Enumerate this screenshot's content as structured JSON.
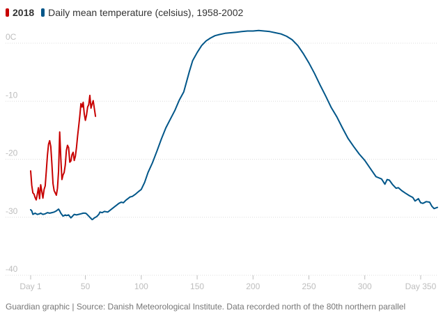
{
  "legend": [
    {
      "label": "2018",
      "color": "#c70000",
      "bold": true
    },
    {
      "label": "Daily mean temperature (celsius), 1958-2002",
      "color": "#005689",
      "bold": false
    }
  ],
  "source": "Guardian graphic | Source: Danish Meteorological Institute. Data recorded north of the 80th northern parallel",
  "colors": {
    "grid": "#dcdcdc",
    "tick": "#bdbdbd",
    "series_2018": "#c70000",
    "series_mean": "#005689"
  },
  "chart_data": {
    "type": "line",
    "title": "",
    "xlabel": "",
    "ylabel": "",
    "xlim": [
      1,
      365
    ],
    "ylim": [
      -40,
      0
    ],
    "yticks": [
      {
        "value": 0,
        "label": "0C"
      },
      {
        "value": -10,
        "label": "-10"
      },
      {
        "value": -20,
        "label": "-20"
      },
      {
        "value": -30,
        "label": "-30"
      },
      {
        "value": -40,
        "label": "-40"
      }
    ],
    "xticks": [
      {
        "value": 1,
        "label": "Day 1"
      },
      {
        "value": 50,
        "label": "50"
      },
      {
        "value": 100,
        "label": "100"
      },
      {
        "value": 150,
        "label": "150"
      },
      {
        "value": 200,
        "label": "200"
      },
      {
        "value": 250,
        "label": "250"
      },
      {
        "value": 300,
        "label": "300"
      },
      {
        "value": 350,
        "label": "Day 350"
      }
    ],
    "series": [
      {
        "name": "Daily mean temperature (celsius), 1958-2002",
        "color": "#005689",
        "x": [
          1,
          2,
          3,
          5,
          7,
          9,
          10,
          12,
          14,
          16,
          18,
          20,
          22,
          24,
          26,
          27,
          28,
          30,
          31,
          32,
          33,
          35,
          37,
          38,
          40,
          42,
          44,
          46,
          48,
          50,
          51,
          53,
          55,
          56,
          57,
          58,
          60,
          62,
          63,
          65,
          67,
          70,
          72,
          74,
          76,
          78,
          80,
          82,
          84,
          86,
          88,
          90,
          92,
          95,
          98,
          100,
          103,
          106,
          110,
          114,
          118,
          122,
          126,
          130,
          134,
          138,
          140,
          143,
          146,
          150,
          154,
          158,
          162,
          166,
          170,
          175,
          180,
          185,
          190,
          195,
          200,
          205,
          210,
          215,
          220,
          225,
          230,
          235,
          240,
          245,
          250,
          255,
          260,
          265,
          270,
          275,
          280,
          285,
          290,
          295,
          300,
          305,
          310,
          315,
          318,
          320,
          322,
          325,
          328,
          330,
          333,
          336,
          340,
          343,
          345,
          348,
          350,
          352,
          355,
          358,
          360,
          362,
          365
        ],
        "values": [
          -28.7,
          -28.9,
          -29.5,
          -29.3,
          -29.5,
          -29.4,
          -29.3,
          -29.5,
          -29.4,
          -29.2,
          -29.3,
          -29.2,
          -29.1,
          -28.9,
          -28.6,
          -28.9,
          -29.3,
          -29.8,
          -29.7,
          -29.6,
          -29.7,
          -29.6,
          -30.1,
          -29.9,
          -29.5,
          -29.6,
          -29.5,
          -29.4,
          -29.3,
          -29.3,
          -29.4,
          -29.8,
          -30.2,
          -30.4,
          -30.3,
          -30.1,
          -29.9,
          -29.5,
          -29.1,
          -29.2,
          -29.0,
          -29.1,
          -28.8,
          -28.5,
          -28.2,
          -27.9,
          -27.6,
          -27.4,
          -27.5,
          -27.1,
          -26.8,
          -26.5,
          -26.4,
          -26.0,
          -25.5,
          -25.2,
          -24.0,
          -22.3,
          -20.6,
          -18.6,
          -16.5,
          -14.6,
          -13.1,
          -11.6,
          -9.8,
          -8.4,
          -7.0,
          -4.9,
          -3.0,
          -1.6,
          -0.4,
          0.4,
          0.9,
          1.3,
          1.5,
          1.7,
          1.8,
          1.9,
          2.0,
          2.1,
          2.1,
          2.2,
          2.1,
          2.0,
          1.8,
          1.6,
          1.2,
          0.6,
          -0.4,
          -1.8,
          -3.4,
          -5.2,
          -7.2,
          -9.1,
          -11.1,
          -12.7,
          -14.6,
          -16.4,
          -17.8,
          -19.1,
          -20.2,
          -21.6,
          -23.0,
          -23.4,
          -24.3,
          -23.5,
          -23.6,
          -24.4,
          -25.0,
          -24.9,
          -25.4,
          -25.8,
          -26.3,
          -26.6,
          -27.2,
          -26.8,
          -27.5,
          -27.6,
          -27.3,
          -27.4,
          -28.1,
          -28.5,
          -28.3
        ]
      },
      {
        "name": "2018",
        "color": "#c70000",
        "x": [
          1,
          2,
          3,
          4,
          5,
          6,
          7,
          8,
          9,
          10,
          11,
          12,
          13,
          14,
          15,
          16,
          17,
          18,
          19,
          20,
          21,
          22,
          23,
          24,
          25,
          26,
          27,
          28,
          29,
          30,
          31,
          32,
          33,
          34,
          35,
          36,
          37,
          38,
          39,
          40,
          41,
          42,
          43,
          44,
          45,
          46,
          47,
          48,
          49,
          50,
          51,
          52,
          53,
          54,
          55,
          56,
          57,
          58,
          59
        ],
        "values": [
          -22.0,
          -24.5,
          -25.8,
          -26.0,
          -26.6,
          -27.0,
          -26.0,
          -24.9,
          -26.8,
          -24.4,
          -25.5,
          -26.7,
          -25.2,
          -24.6,
          -22.0,
          -19.3,
          -17.4,
          -16.8,
          -17.8,
          -20.8,
          -24.2,
          -25.4,
          -25.8,
          -26.2,
          -25.0,
          -22.0,
          -15.3,
          -19.8,
          -23.5,
          -22.7,
          -22.3,
          -21.0,
          -18.5,
          -17.6,
          -18.0,
          -20.5,
          -20.3,
          -19.2,
          -18.8,
          -20.2,
          -19.5,
          -18.0,
          -16.0,
          -14.3,
          -12.5,
          -10.4,
          -11.0,
          -10.2,
          -12.2,
          -13.3,
          -12.4,
          -11.0,
          -10.6,
          -9.0,
          -11.2,
          -10.5,
          -9.9,
          -11.3,
          -12.6
        ]
      }
    ]
  }
}
